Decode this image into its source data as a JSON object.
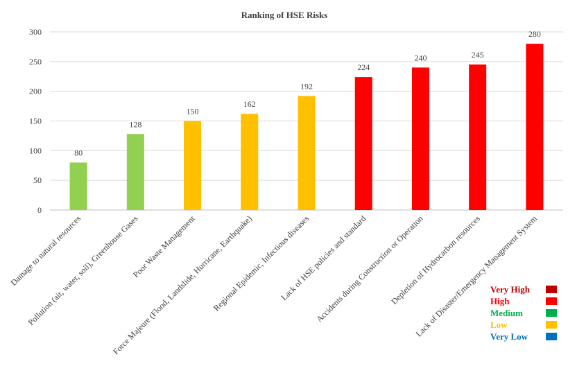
{
  "chart_data": {
    "type": "bar",
    "title": "Ranking of HSE Risks",
    "xlabel": "",
    "ylabel": "",
    "ylim": [
      0,
      300
    ],
    "yticks": [
      0,
      50,
      100,
      150,
      200,
      250,
      300
    ],
    "grid": true,
    "categories": [
      "Damage to natural resources",
      "Pollution (air, water, soil), Greenhouse Gases",
      "Poor Waste Management",
      "Force Majeure (Flood, Landslide, Hurricane, Earthquake)",
      "Regional Epidemic, Infectious diseases",
      "Lack of HSE policies and standard",
      "Accidents during Construction or Operation",
      "Depletion of Hydrocarbon resources",
      "Lack of Disaster/Emergency Management System"
    ],
    "values": [
      80,
      128,
      150,
      162,
      192,
      224,
      240,
      245,
      280
    ],
    "bar_colors": [
      "#92d050",
      "#92d050",
      "#ffc000",
      "#ffc000",
      "#ffc000",
      "#ff0000",
      "#ff0000",
      "#ff0000",
      "#ff0000"
    ],
    "legend_position": "bottom-right",
    "legend": [
      {
        "label": "Very High",
        "color": "#c00000",
        "text_color": "#c00000"
      },
      {
        "label": "High",
        "color": "#ff0000",
        "text_color": "#ff0000"
      },
      {
        "label": "Medium",
        "color": "#00b050",
        "text_color": "#00b050"
      },
      {
        "label": "Low",
        "color": "#ffc000",
        "text_color": "#ffc000"
      },
      {
        "label": "Very Low",
        "color": "#0070c0",
        "text_color": "#0070c0"
      }
    ]
  }
}
